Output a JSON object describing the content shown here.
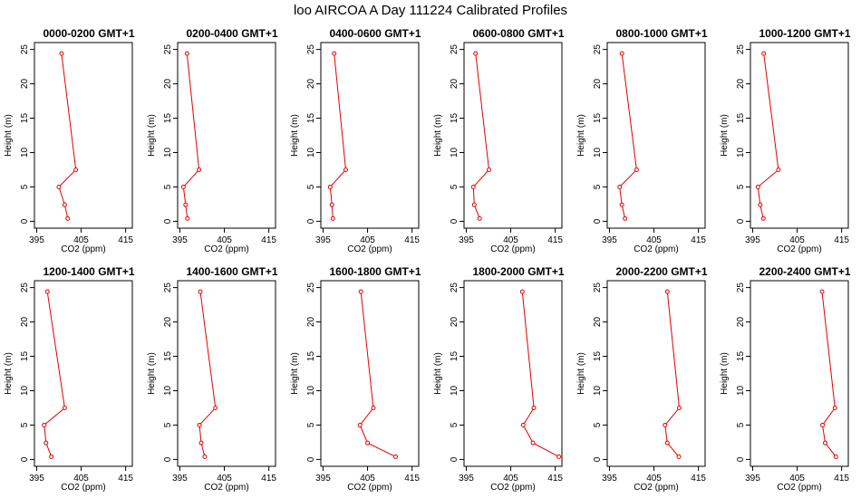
{
  "figure": {
    "title": "loo AIRCOA A  Day 111224  Calibrated Profiles"
  },
  "axes": {
    "xlabel": "CO2 (ppm)",
    "ylabel": "Height (m)",
    "xticks": [
      "395",
      "405",
      "415"
    ],
    "yticks": [
      "0",
      "5",
      "10",
      "15",
      "20",
      "25"
    ]
  },
  "style": {
    "line_color": "#e00000",
    "text_color": "#000000",
    "background": "#ffffff"
  },
  "chart_data": [
    {
      "type": "line",
      "title": "0000-0200 GMT+1",
      "xlim": [
        394.5,
        416.5
      ],
      "ylim": [
        -1,
        26
      ],
      "heights": [
        0.4,
        2.4,
        5.0,
        7.5,
        24.4
      ],
      "co2": [
        402.0,
        401.3,
        400.0,
        403.8,
        400.6
      ]
    },
    {
      "type": "line",
      "title": "0200-0400 GMT+1",
      "xlim": [
        394.5,
        416.5
      ],
      "ylim": [
        -1,
        26
      ],
      "heights": [
        0.4,
        2.4,
        5.0,
        7.5,
        24.4
      ],
      "co2": [
        396.7,
        396.3,
        395.8,
        399.3,
        396.6
      ]
    },
    {
      "type": "line",
      "title": "0400-0600 GMT+1",
      "xlim": [
        394.5,
        416.5
      ],
      "ylim": [
        -1,
        26
      ],
      "heights": [
        0.4,
        2.4,
        5.0,
        7.5,
        24.4
      ],
      "co2": [
        397.2,
        397.0,
        396.6,
        400.1,
        397.5
      ]
    },
    {
      "type": "line",
      "title": "0600-0800 GMT+1",
      "xlim": [
        394.5,
        416.5
      ],
      "ylim": [
        -1,
        26
      ],
      "heights": [
        0.4,
        2.4,
        5.0,
        7.5,
        24.4
      ],
      "co2": [
        398.0,
        396.8,
        396.6,
        400.1,
        397.1
      ]
    },
    {
      "type": "line",
      "title": "0800-1000 GMT+1",
      "xlim": [
        394.5,
        416.5
      ],
      "ylim": [
        -1,
        26
      ],
      "heights": [
        0.4,
        2.4,
        5.0,
        7.5,
        24.4
      ],
      "co2": [
        398.5,
        397.8,
        397.3,
        401.1,
        397.8
      ]
    },
    {
      "type": "line",
      "title": "1000-1200 GMT+1",
      "xlim": [
        394.5,
        416.5
      ],
      "ylim": [
        -1,
        26
      ],
      "heights": [
        0.4,
        2.4,
        5.0,
        7.5,
        24.4
      ],
      "co2": [
        397.4,
        396.7,
        396.2,
        400.8,
        397.5
      ]
    },
    {
      "type": "line",
      "title": "1200-1400 GMT+1",
      "xlim": [
        394.5,
        416.5
      ],
      "ylim": [
        -1,
        26
      ],
      "heights": [
        0.4,
        2.4,
        5.0,
        7.5,
        24.4
      ],
      "co2": [
        398.3,
        397.1,
        396.7,
        401.3,
        397.4
      ]
    },
    {
      "type": "line",
      "title": "1400-1600 GMT+1",
      "xlim": [
        394.5,
        416.5
      ],
      "ylim": [
        -1,
        26
      ],
      "heights": [
        0.4,
        2.4,
        5.0,
        7.5,
        24.4
      ],
      "co2": [
        400.6,
        399.8,
        399.4,
        403.0,
        399.6
      ]
    },
    {
      "type": "line",
      "title": "1600-1800 GMT+1",
      "xlim": [
        394.5,
        416.5
      ],
      "ylim": [
        -1,
        26
      ],
      "heights": [
        0.4,
        2.4,
        5.0,
        7.5,
        24.4
      ],
      "co2": [
        411.3,
        405.0,
        403.3,
        406.3,
        403.5
      ]
    },
    {
      "type": "line",
      "title": "1800-2000 GMT+1",
      "xlim": [
        394.5,
        416.5
      ],
      "ylim": [
        -1,
        26
      ],
      "heights": [
        0.4,
        2.4,
        5.0,
        7.5,
        24.4
      ],
      "co2": [
        415.8,
        410.0,
        407.8,
        410.2,
        407.6
      ]
    },
    {
      "type": "line",
      "title": "2000-2200 GMT+1",
      "xlim": [
        394.5,
        416.5
      ],
      "ylim": [
        -1,
        26
      ],
      "heights": [
        0.4,
        2.4,
        5.0,
        7.5,
        24.4
      ],
      "co2": [
        410.6,
        408.0,
        407.5,
        410.7,
        408.0
      ]
    },
    {
      "type": "line",
      "title": "2200-2400 GMT+1",
      "xlim": [
        394.5,
        416.5
      ],
      "ylim": [
        -1,
        26
      ],
      "heights": [
        0.4,
        2.4,
        5.0,
        7.5,
        24.4
      ],
      "co2": [
        413.7,
        411.3,
        410.7,
        413.5,
        410.6
      ]
    }
  ]
}
